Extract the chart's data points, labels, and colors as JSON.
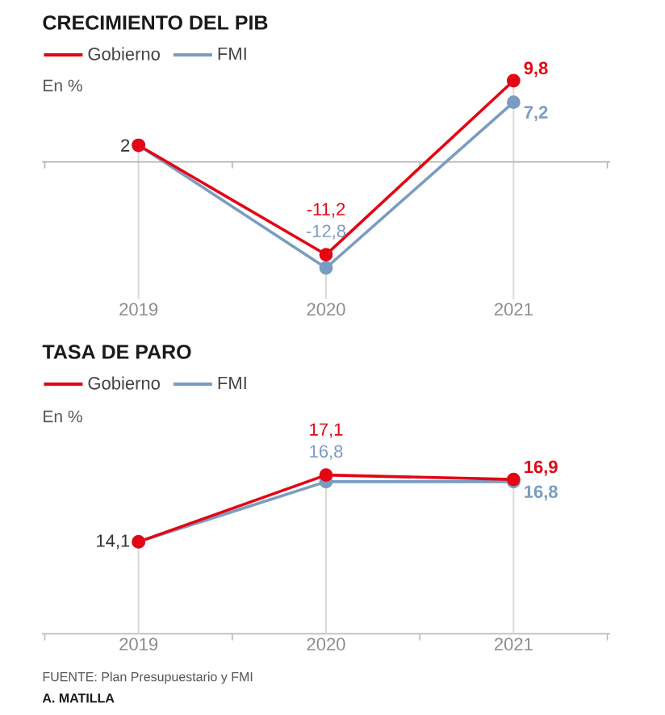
{
  "chart_data": [
    {
      "type": "line",
      "title": "CRECIMIENTO DEL PIB",
      "ylabel": "En %",
      "categories": [
        "2019",
        "2020",
        "2021"
      ],
      "series": [
        {
          "name": "Gobierno",
          "color": "#e30613",
          "values": [
            2,
            -11.2,
            9.8
          ],
          "value_labels": [
            "2",
            "-11,2",
            "9,8"
          ]
        },
        {
          "name": "FMI",
          "color": "#7b9cc1",
          "values": [
            2,
            -12.8,
            7.2
          ],
          "value_labels": [
            null,
            "-12,8",
            "7,2"
          ]
        }
      ],
      "ref_lines": [
        {
          "axis": "y",
          "value": 0,
          "color": "#b3b3b3"
        }
      ],
      "grid": "x",
      "legend": "top left",
      "marker": "circle",
      "line_style": "solid",
      "tick_labels": "x"
    },
    {
      "type": "line",
      "title": "TASA DE PARO",
      "ylabel": "En %",
      "categories": [
        "2019",
        "2020",
        "2021"
      ],
      "series": [
        {
          "name": "Gobierno",
          "color": "#e30613",
          "values": [
            14.1,
            17.1,
            16.9
          ],
          "value_labels": [
            "14,1",
            "17,1",
            "16,9"
          ]
        },
        {
          "name": "FMI",
          "color": "#7b9cc1",
          "values": [
            14.1,
            16.8,
            16.8
          ],
          "value_labels": [
            null,
            "16,8",
            "16,8"
          ]
        }
      ],
      "grid": "x",
      "legend": "top left",
      "marker": "circle",
      "line_style": "solid",
      "tick_labels": "x",
      "annotations": [
        "FUENTE: Plan Presupuestario y FMI",
        "A. MATILLA"
      ]
    }
  ]
}
